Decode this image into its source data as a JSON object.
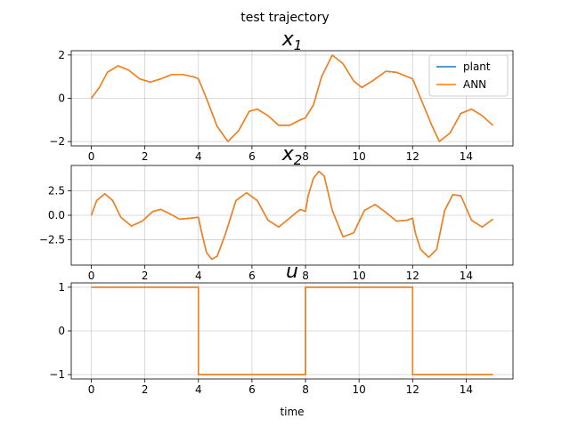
{
  "figure": {
    "suptitle": "test trajectory",
    "xlabel": "time"
  },
  "chart_data": [
    {
      "type": "line",
      "title": "x_1",
      "title_base": "x",
      "title_sub": "1",
      "xlim": [
        -0.75,
        15.75
      ],
      "ylim": [
        -2.2,
        2.2
      ],
      "xticks": [
        0,
        2,
        4,
        6,
        8,
        10,
        12,
        14
      ],
      "yticks": [
        -2,
        0,
        2
      ],
      "grid": true,
      "legend": {
        "placement": "top-right",
        "entries": [
          "plant",
          "ANN"
        ]
      },
      "series": [
        {
          "name": "plant",
          "color": "#1f77b4",
          "x": [
            0,
            0.3,
            0.6,
            1.0,
            1.4,
            1.8,
            2.2,
            2.6,
            3.0,
            3.4,
            3.8,
            4.0,
            4.3,
            4.7,
            5.1,
            5.5,
            5.9,
            6.2,
            6.6,
            7.0,
            7.4,
            7.8,
            8.0,
            8.3,
            8.6,
            9.0,
            9.4,
            9.8,
            10.1,
            10.5,
            11.0,
            11.4,
            11.8,
            12.0,
            12.3,
            12.7,
            13.0,
            13.4,
            13.8,
            14.2,
            14.6,
            15.0
          ],
          "y": [
            0.0,
            0.5,
            1.2,
            1.5,
            1.3,
            0.9,
            0.75,
            0.9,
            1.1,
            1.1,
            1.0,
            0.9,
            0.0,
            -1.3,
            -2.0,
            -1.5,
            -0.6,
            -0.5,
            -0.8,
            -1.25,
            -1.25,
            -1.0,
            -0.9,
            -0.3,
            1.0,
            2.0,
            1.6,
            0.8,
            0.5,
            0.8,
            1.25,
            1.2,
            1.0,
            0.9,
            0.0,
            -1.2,
            -2.0,
            -1.6,
            -0.7,
            -0.5,
            -0.8,
            -1.25
          ]
        },
        {
          "name": "ANN",
          "color": "#ff7f0e",
          "x": [
            0,
            0.3,
            0.6,
            1.0,
            1.4,
            1.8,
            2.2,
            2.6,
            3.0,
            3.4,
            3.8,
            4.0,
            4.3,
            4.7,
            5.1,
            5.5,
            5.9,
            6.2,
            6.6,
            7.0,
            7.4,
            7.8,
            8.0,
            8.3,
            8.6,
            9.0,
            9.4,
            9.8,
            10.1,
            10.5,
            11.0,
            11.4,
            11.8,
            12.0,
            12.3,
            12.7,
            13.0,
            13.4,
            13.8,
            14.2,
            14.6,
            15.0
          ],
          "y": [
            0.0,
            0.5,
            1.2,
            1.5,
            1.3,
            0.9,
            0.75,
            0.9,
            1.1,
            1.1,
            1.0,
            0.9,
            0.0,
            -1.3,
            -2.0,
            -1.5,
            -0.6,
            -0.5,
            -0.8,
            -1.25,
            -1.25,
            -1.0,
            -0.9,
            -0.3,
            1.0,
            2.0,
            1.6,
            0.8,
            0.5,
            0.8,
            1.25,
            1.2,
            1.0,
            0.9,
            0.0,
            -1.2,
            -2.0,
            -1.6,
            -0.7,
            -0.5,
            -0.8,
            -1.25
          ]
        }
      ]
    },
    {
      "type": "line",
      "title": "x_2",
      "title_base": "x",
      "title_sub": "2",
      "xlim": [
        -0.75,
        15.75
      ],
      "ylim": [
        -5.1,
        5.1
      ],
      "xticks": [
        0,
        2,
        4,
        6,
        8,
        10,
        12,
        14
      ],
      "yticks": [
        -2.5,
        0.0,
        2.5
      ],
      "ytick_labels": [
        "−2.5",
        "0.0",
        "2.5"
      ],
      "grid": true,
      "series": [
        {
          "name": "plant",
          "color": "#1f77b4",
          "x": [
            0,
            0.2,
            0.5,
            0.8,
            1.1,
            1.5,
            1.9,
            2.3,
            2.6,
            2.9,
            3.3,
            3.7,
            4.0,
            4.1,
            4.3,
            4.5,
            4.7,
            5.0,
            5.4,
            5.8,
            6.2,
            6.6,
            7.0,
            7.4,
            7.8,
            8.0,
            8.1,
            8.3,
            8.5,
            8.7,
            9.0,
            9.4,
            9.8,
            10.2,
            10.6,
            11.0,
            11.4,
            11.8,
            12.0,
            12.1,
            12.3,
            12.6,
            12.9,
            13.2,
            13.5,
            13.8,
            14.2,
            14.6,
            15.0
          ],
          "y": [
            0.0,
            1.5,
            2.2,
            1.5,
            -0.2,
            -1.1,
            -0.6,
            0.4,
            0.6,
            0.2,
            -0.4,
            -0.3,
            -0.2,
            -1.5,
            -3.8,
            -4.5,
            -4.2,
            -2.0,
            1.5,
            2.3,
            1.5,
            -0.5,
            -1.2,
            -0.3,
            0.6,
            0.4,
            2.0,
            3.8,
            4.5,
            4.0,
            0.5,
            -2.2,
            -1.8,
            0.5,
            1.1,
            0.3,
            -0.6,
            -0.5,
            -0.3,
            -1.8,
            -3.5,
            -4.3,
            -3.5,
            0.5,
            2.1,
            2.0,
            -0.5,
            -1.2,
            -0.4
          ]
        },
        {
          "name": "ANN",
          "color": "#ff7f0e",
          "x": [
            0,
            0.2,
            0.5,
            0.8,
            1.1,
            1.5,
            1.9,
            2.3,
            2.6,
            2.9,
            3.3,
            3.7,
            4.0,
            4.1,
            4.3,
            4.5,
            4.7,
            5.0,
            5.4,
            5.8,
            6.2,
            6.6,
            7.0,
            7.4,
            7.8,
            8.0,
            8.1,
            8.3,
            8.5,
            8.7,
            9.0,
            9.4,
            9.8,
            10.2,
            10.6,
            11.0,
            11.4,
            11.8,
            12.0,
            12.1,
            12.3,
            12.6,
            12.9,
            13.2,
            13.5,
            13.8,
            14.2,
            14.6,
            15.0
          ],
          "y": [
            0.0,
            1.5,
            2.2,
            1.5,
            -0.2,
            -1.1,
            -0.6,
            0.4,
            0.6,
            0.2,
            -0.4,
            -0.3,
            -0.2,
            -1.5,
            -3.8,
            -4.5,
            -4.2,
            -2.0,
            1.5,
            2.3,
            1.5,
            -0.5,
            -1.2,
            -0.3,
            0.6,
            0.4,
            2.0,
            3.8,
            4.5,
            4.0,
            0.5,
            -2.2,
            -1.8,
            0.5,
            1.1,
            0.3,
            -0.6,
            -0.5,
            -0.3,
            -1.8,
            -3.5,
            -4.3,
            -3.5,
            0.5,
            2.1,
            2.0,
            -0.5,
            -1.2,
            -0.4
          ]
        }
      ]
    },
    {
      "type": "line",
      "title": "u",
      "title_base": "u",
      "title_sub": "",
      "xlim": [
        -0.75,
        15.75
      ],
      "ylim": [
        -1.1,
        1.1
      ],
      "xticks": [
        0,
        2,
        4,
        6,
        8,
        10,
        12,
        14
      ],
      "yticks": [
        -1,
        0,
        1
      ],
      "ytick_labels": [
        "−1",
        "0",
        "1"
      ],
      "grid": true,
      "series": [
        {
          "name": "plant",
          "color": "#1f77b4",
          "x": [
            0,
            4,
            4,
            8,
            8,
            12,
            12,
            15
          ],
          "y": [
            1,
            1,
            -1,
            -1,
            1,
            1,
            -1,
            -1
          ]
        },
        {
          "name": "ANN",
          "color": "#ff7f0e",
          "x": [
            0,
            4,
            4,
            8,
            8,
            12,
            12,
            15
          ],
          "y": [
            1,
            1,
            -1,
            -1,
            1,
            1,
            -1,
            -1
          ]
        }
      ]
    }
  ]
}
